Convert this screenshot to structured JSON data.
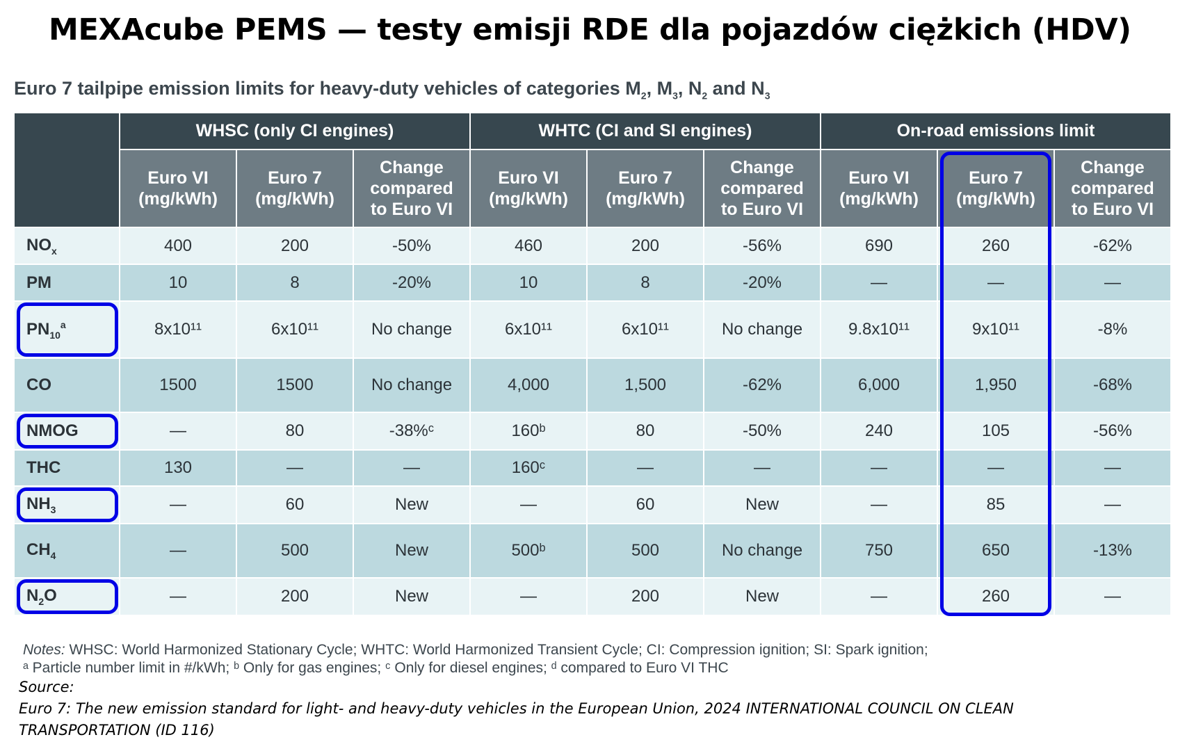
{
  "title": "MEXAcube PEMS — testy emisji RDE dla pojazdów ciężkich (HDV)",
  "subtitle": {
    "text": "Euro 7 tailpipe emission limits for heavy-duty vehicles of categories M",
    "sub1": "2",
    "t2": ", M",
    "sub2": "3",
    "t3": ", N",
    "sub3": "2",
    "t4": " and N",
    "sub4": "3"
  },
  "table": {
    "groups": [
      "WHSC (only CI engines)",
      "WHTC (CI and SI engines)",
      "On-road emissions limit"
    ],
    "subheaders": [
      [
        "Euro VI",
        "(mg/kWh)"
      ],
      [
        "Euro 7",
        "(mg/kWh)"
      ],
      [
        "Change",
        "compared",
        "to Euro VI"
      ],
      [
        "Euro VI",
        "(mg/kWh)"
      ],
      [
        "Euro 7",
        "(mg/kWh)"
      ],
      [
        "Change",
        "compared",
        "to Euro VI"
      ],
      [
        "Euro VI",
        "(mg/kWh)"
      ],
      [
        "Euro 7",
        "(mg/kWh)"
      ],
      [
        "Change",
        "compared",
        "to Euro VI"
      ]
    ],
    "rows": [
      {
        "label": "NO",
        "sub": "x",
        "sup": "",
        "values": [
          "400",
          "200",
          "-50%",
          "460",
          "200",
          "-56%",
          "690",
          "260",
          "-62%"
        ]
      },
      {
        "label": "PM",
        "sub": "",
        "sup": "",
        "values": [
          "10",
          "8",
          "-20%",
          "10",
          "8",
          "-20%",
          "—",
          "—",
          "—"
        ]
      },
      {
        "label": "PN",
        "sub": "10",
        "sup": "a",
        "values": [
          "8x10¹¹",
          "6x10¹¹",
          "No change",
          "6x10¹¹",
          "6x10¹¹",
          "No change",
          "9.8x10¹¹",
          "9x10¹¹",
          "-8%"
        ]
      },
      {
        "label": "CO",
        "sub": "",
        "sup": "",
        "values": [
          "1500",
          "1500",
          "No change",
          "4,000",
          "1,500",
          "-62%",
          "6,000",
          "1,950",
          "-68%"
        ]
      },
      {
        "label": "NMOG",
        "sub": "",
        "sup": "",
        "values": [
          "—",
          "80",
          "-38%ᶜ",
          "160ᵇ",
          "80",
          "-50%",
          "240",
          "105",
          "-56%"
        ]
      },
      {
        "label": "THC",
        "sub": "",
        "sup": "",
        "values": [
          "130",
          "—",
          "—",
          "160ᶜ",
          "—",
          "—",
          "—",
          "—",
          "—"
        ]
      },
      {
        "label": "NH",
        "sub": "3",
        "sup": "",
        "values": [
          "—",
          "60",
          "New",
          "—",
          "60",
          "New",
          "—",
          "85",
          "—"
        ]
      },
      {
        "label": "CH",
        "sub": "4",
        "sup": "",
        "values": [
          "—",
          "500",
          "New",
          "500ᵇ",
          "500",
          "No change",
          "750",
          "650",
          "-13%"
        ]
      },
      {
        "label": "N",
        "sub": "2",
        "sup": "",
        "label2": "O",
        "values": [
          "—",
          "200",
          "New",
          "—",
          "200",
          "New",
          "—",
          "260",
          "—"
        ]
      }
    ]
  },
  "notes": {
    "line1_label": "Notes:",
    "line1": " WHSC: World Harmonized Stationary Cycle; WHTC: World Harmonized Transient Cycle; CI: Compression ignition; SI: Spark ignition;",
    "line2": "ᵃ Particle number limit in #/kWh; ᵇ Only for gas engines; ᶜ Only for diesel engines; ᵈ compared to Euro VI THC"
  },
  "source": {
    "label": "Source:",
    "line1": "Euro 7: The new emission standard for light- and heavy-duty vehicles in the European Union, 2024 INTERNATIONAL COUNCIL ON CLEAN",
    "line2": "TRANSPORTATION (ID 116)"
  },
  "colors": {
    "highlight": "#0000e6",
    "header": "#37474f",
    "subheader": "#6e7c84",
    "row_light": "#e8f3f5",
    "row_dark": "#bcd9df"
  }
}
